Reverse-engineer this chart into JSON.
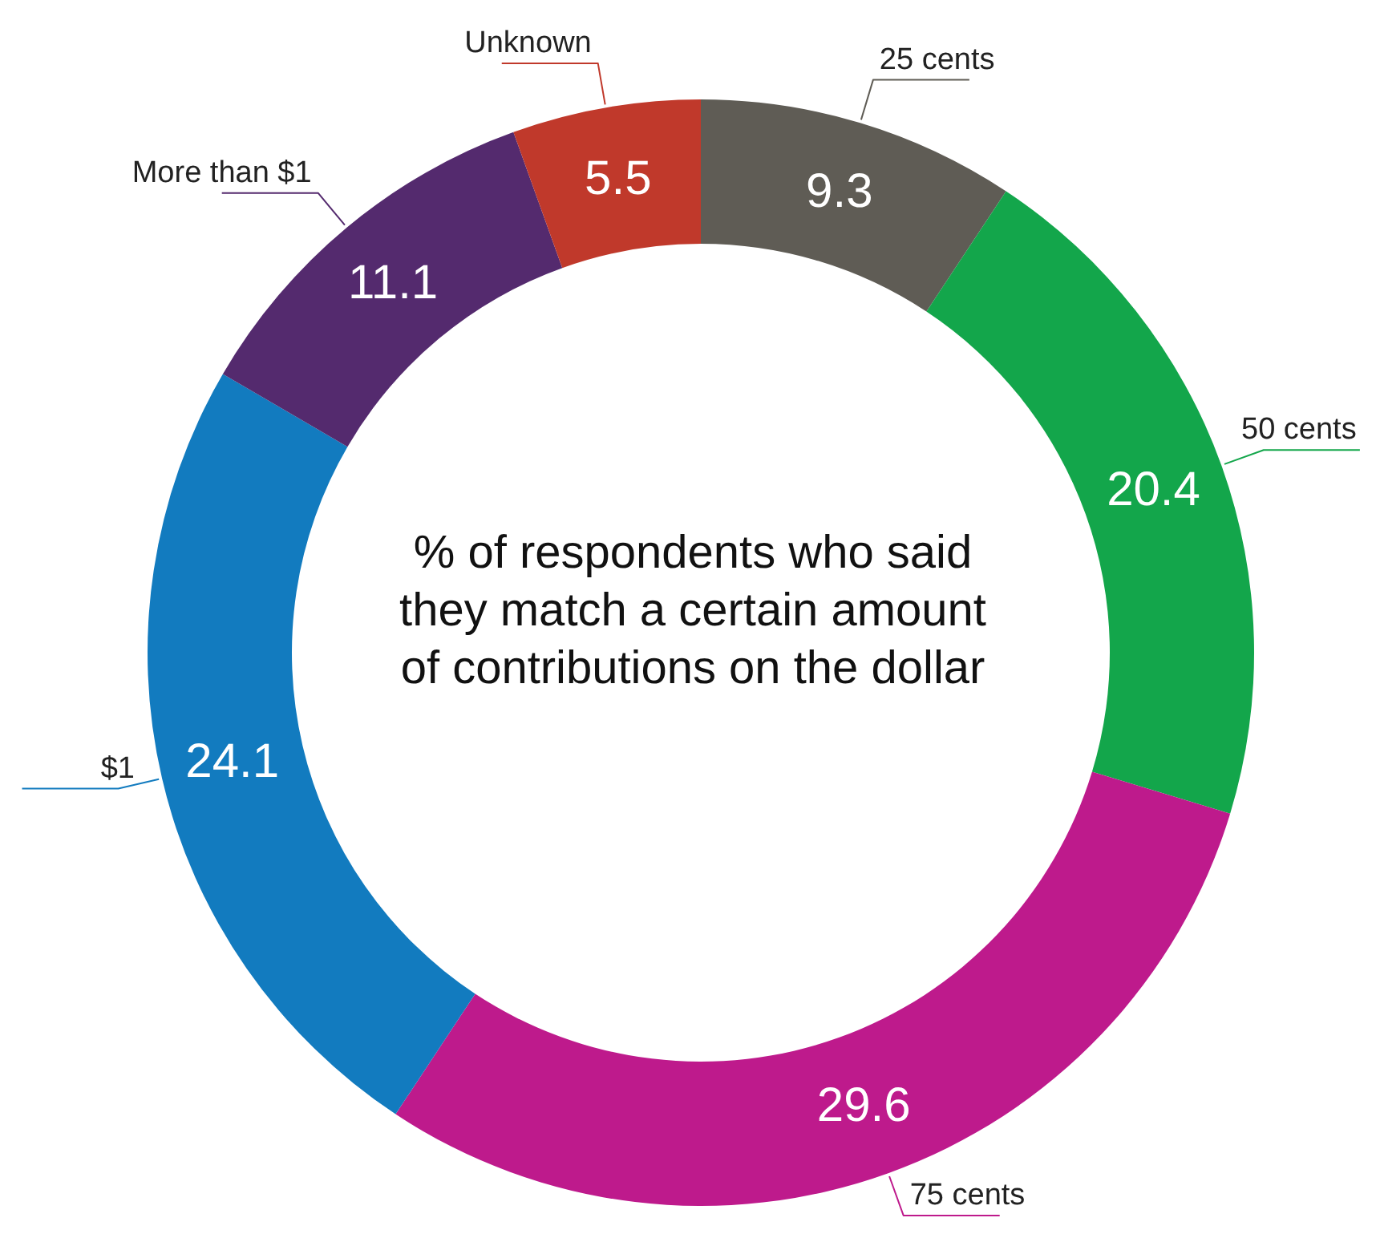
{
  "chart_data": {
    "type": "donut",
    "title": "% of respondents who said they match a certain amount of contributions on the dollar",
    "categories": [
      "25 cents",
      "50 cents",
      "75 cents",
      "$1",
      "More than $1",
      "Unknown"
    ],
    "values": [
      9.3,
      20.4,
      29.6,
      24.1,
      11.1,
      5.5
    ],
    "colors": [
      "#5f5c55",
      "#13a64b",
      "#be1a8c",
      "#127bbf",
      "#542a6e",
      "#c0392b"
    ],
    "data_labels": true
  }
}
